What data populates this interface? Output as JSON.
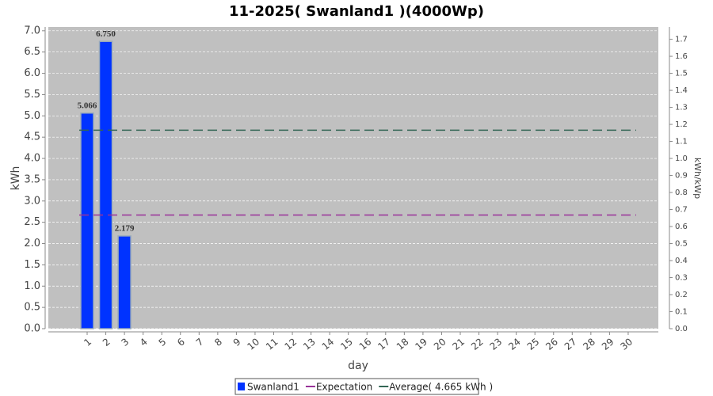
{
  "chart_data": {
    "type": "bar",
    "title": "11-2025( Swanland1 )(4000Wp)",
    "x_label": "day",
    "y_label": "kWh",
    "y2_label": "kWh/kWp",
    "categories": [
      "1",
      "2",
      "3",
      "4",
      "5",
      "6",
      "7",
      "8",
      "9",
      "10",
      "11",
      "12",
      "13",
      "14",
      "15",
      "16",
      "17",
      "18",
      "19",
      "20",
      "21",
      "22",
      "23",
      "24",
      "25",
      "26",
      "27",
      "28",
      "29",
      "30"
    ],
    "series": [
      {
        "name": "Swanland1",
        "color": "#0033ff",
        "values": [
          5.066,
          6.75,
          2.179,
          0,
          0,
          0,
          0,
          0,
          0,
          0,
          0,
          0,
          0,
          0,
          0,
          0,
          0,
          0,
          0,
          0,
          0,
          0,
          0,
          0,
          0,
          0,
          0,
          0,
          0,
          0
        ],
        "value_labels": [
          "5.066",
          "6.750",
          "2.179",
          null,
          null,
          null,
          null,
          null,
          null,
          null,
          null,
          null,
          null,
          null,
          null,
          null,
          null,
          null,
          null,
          null,
          null,
          null,
          null,
          null,
          null,
          null,
          null,
          null,
          null,
          null
        ]
      }
    ],
    "reference_lines": [
      {
        "name": "Expectation",
        "color": "#993399",
        "value": 2.67
      },
      {
        "name": "Average( 4.665 kWh )",
        "color": "#336655",
        "value": 4.665
      }
    ],
    "ylim": [
      0,
      7.09
    ],
    "yticks": [
      {
        "value": 0,
        "label": "0.0"
      },
      {
        "value": 0.5,
        "label": "0.5"
      },
      {
        "value": 1,
        "label": "1.0"
      },
      {
        "value": 1.5,
        "label": "1.5"
      },
      {
        "value": 2,
        "label": "2.0"
      },
      {
        "value": 2.5,
        "label": "2.5"
      },
      {
        "value": 3,
        "label": "3.0"
      },
      {
        "value": 3.5,
        "label": "3.5"
      },
      {
        "value": 4,
        "label": "4.0"
      },
      {
        "value": 4.5,
        "label": "4.5"
      },
      {
        "value": 5,
        "label": "5.0"
      },
      {
        "value": 5.5,
        "label": "5.5"
      },
      {
        "value": 6,
        "label": "6.0"
      },
      {
        "value": 6.5,
        "label": "6.5"
      },
      {
        "value": 7,
        "label": "7.0"
      }
    ],
    "y2lim": [
      0,
      1.7725
    ],
    "y2ticks": [
      {
        "value": 0,
        "label": "0.0"
      },
      0.1,
      0.2,
      0.3,
      0.4,
      0.5,
      0.6,
      0.7,
      0.8,
      0.9,
      {
        "value": 1,
        "label": "1.0"
      },
      1.1,
      1.2,
      1.3,
      1.4,
      1.5,
      1.6,
      1.7
    ],
    "grid": true
  }
}
